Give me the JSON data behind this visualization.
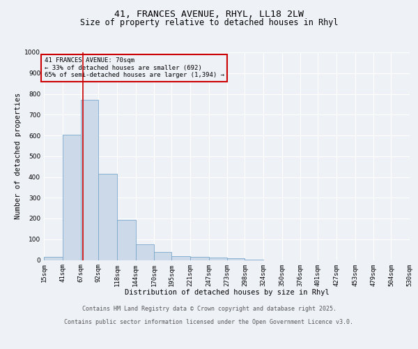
{
  "title_line1": "41, FRANCES AVENUE, RHYL, LL18 2LW",
  "title_line2": "Size of property relative to detached houses in Rhyl",
  "xlabel": "Distribution of detached houses by size in Rhyl",
  "ylabel": "Number of detached properties",
  "bin_edges": [
    15,
    41,
    67,
    92,
    118,
    144,
    170,
    195,
    221,
    247,
    273,
    298,
    324,
    350,
    376,
    401,
    427,
    453,
    479,
    504,
    530
  ],
  "bar_heights": [
    15,
    605,
    770,
    415,
    193,
    75,
    37,
    18,
    15,
    13,
    8,
    3,
    0,
    0,
    0,
    0,
    0,
    0,
    0,
    0
  ],
  "bar_facecolor": "#ccd9e8",
  "bar_edgecolor": "#7aa8cc",
  "property_size": 70,
  "vline_color": "#cc0000",
  "ylim": [
    0,
    1000
  ],
  "yticks": [
    0,
    100,
    200,
    300,
    400,
    500,
    600,
    700,
    800,
    900,
    1000
  ],
  "annotation_line1": "41 FRANCES AVENUE: 70sqm",
  "annotation_line2": "← 33% of detached houses are smaller (692)",
  "annotation_line3": "65% of semi-detached houses are larger (1,394) →",
  "annotation_box_color": "#cc0000",
  "footer_line1": "Contains HM Land Registry data © Crown copyright and database right 2025.",
  "footer_line2": "Contains public sector information licensed under the Open Government Licence v3.0.",
  "background_color": "#eef2f7",
  "grid_color": "#ffffff",
  "title_fontsize": 9.5,
  "subtitle_fontsize": 8.5,
  "axis_label_fontsize": 7.5,
  "tick_fontsize": 6.5,
  "annotation_fontsize": 6.5,
  "footer_fontsize": 6.0
}
